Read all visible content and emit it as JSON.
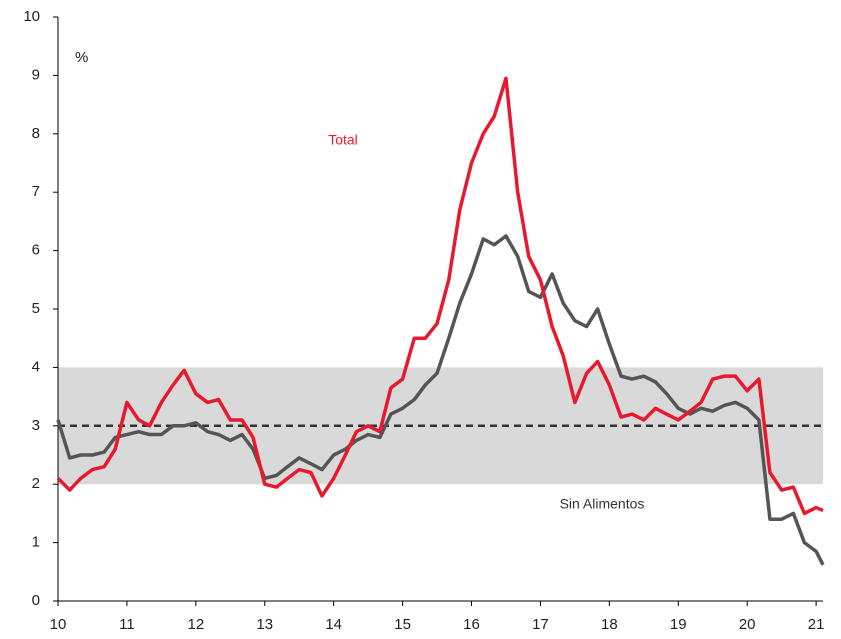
{
  "chart_data": {
    "type": "line",
    "y_label": "%",
    "x": [
      10,
      10.17,
      10.33,
      10.5,
      10.67,
      10.83,
      11,
      11.17,
      11.33,
      11.5,
      11.67,
      11.83,
      12,
      12.17,
      12.33,
      12.5,
      12.67,
      12.83,
      13,
      13.17,
      13.33,
      13.5,
      13.67,
      13.83,
      14,
      14.17,
      14.33,
      14.5,
      14.67,
      14.83,
      15,
      15.17,
      15.33,
      15.5,
      15.67,
      15.83,
      16,
      16.17,
      16.33,
      16.5,
      16.67,
      16.83,
      17,
      17.17,
      17.33,
      17.5,
      17.67,
      17.83,
      18,
      18.17,
      18.33,
      18.5,
      18.67,
      18.83,
      19,
      19.17,
      19.33,
      19.5,
      19.67,
      19.83,
      20,
      20.17,
      20.33,
      20.5,
      20.67,
      20.83,
      21,
      21.1
    ],
    "series": [
      {
        "name": "Total",
        "color": "#e8192c",
        "values": [
          2.1,
          1.9,
          2.1,
          2.25,
          2.3,
          2.6,
          3.4,
          3.1,
          3.0,
          3.4,
          3.7,
          3.95,
          3.55,
          3.4,
          3.45,
          3.1,
          3.1,
          2.8,
          2.0,
          1.95,
          2.1,
          2.25,
          2.2,
          1.8,
          2.1,
          2.5,
          2.9,
          3.0,
          2.9,
          3.65,
          3.8,
          4.5,
          4.5,
          4.75,
          5.5,
          6.7,
          7.5,
          8.0,
          8.3,
          8.95,
          7.0,
          5.9,
          5.5,
          4.7,
          4.2,
          3.4,
          3.9,
          4.1,
          3.7,
          3.15,
          3.2,
          3.1,
          3.3,
          3.2,
          3.1,
          3.25,
          3.4,
          3.8,
          3.85,
          3.85,
          3.6,
          3.8,
          2.2,
          1.9,
          1.95,
          1.5,
          1.6,
          1.55
        ]
      },
      {
        "name": "Sin Alimentos",
        "color": "#555555",
        "values": [
          3.1,
          2.45,
          2.5,
          2.5,
          2.55,
          2.8,
          2.85,
          2.9,
          2.85,
          2.85,
          3.0,
          3.0,
          3.05,
          2.9,
          2.85,
          2.75,
          2.85,
          2.6,
          2.1,
          2.15,
          2.3,
          2.45,
          2.35,
          2.25,
          2.5,
          2.6,
          2.75,
          2.85,
          2.8,
          3.2,
          3.3,
          3.45,
          3.7,
          3.9,
          4.5,
          5.1,
          5.6,
          6.2,
          6.1,
          6.25,
          5.9,
          5.3,
          5.2,
          5.6,
          5.1,
          4.8,
          4.7,
          5.0,
          4.4,
          3.85,
          3.8,
          3.85,
          3.75,
          3.55,
          3.3,
          3.2,
          3.3,
          3.25,
          3.35,
          3.4,
          3.3,
          3.1,
          1.4,
          1.4,
          1.5,
          1.0,
          0.85,
          0.62
        ]
      }
    ],
    "target_range": [
      2,
      4
    ],
    "target": 3,
    "xlim": [
      10,
      21.1
    ],
    "xticks": [
      10,
      11,
      12,
      13,
      14,
      15,
      16,
      17,
      18,
      19,
      20,
      21
    ],
    "ylim": [
      0,
      10
    ],
    "yticks": [
      0,
      1,
      2,
      3,
      4,
      5,
      6,
      7,
      8,
      9,
      10
    ]
  }
}
